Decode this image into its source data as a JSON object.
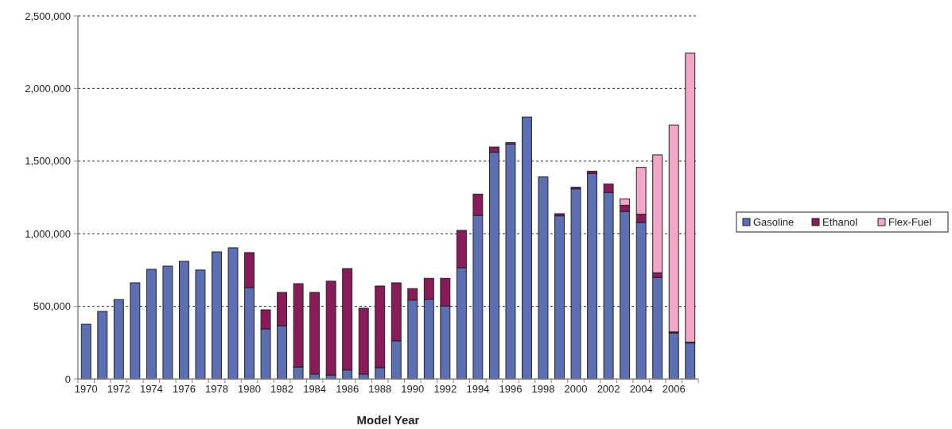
{
  "chart_data": {
    "type": "bar",
    "stacked": true,
    "xlabel": "Model Year",
    "categories": [
      "1970",
      null,
      "1972",
      null,
      "1974",
      null,
      "1976",
      null,
      "1978",
      null,
      "1980",
      null,
      "1982",
      null,
      "1984",
      null,
      "1986",
      null,
      "1988",
      null,
      "1990",
      null,
      "1992",
      null,
      "1994",
      null,
      "1996",
      null,
      "1998",
      null,
      "2000",
      null,
      "2002",
      null,
      "2004",
      null,
      "2006",
      null
    ],
    "series": [
      {
        "name": "Gasoline",
        "color": "#5b6fb5",
        "values": [
          377000,
          465000,
          547000,
          662000,
          755000,
          777000,
          810000,
          750000,
          875000,
          903000,
          629000,
          345000,
          366000,
          82000,
          34000,
          27000,
          62000,
          34000,
          78000,
          263000,
          543000,
          549000,
          503000,
          766000,
          1127000,
          1561000,
          1617000,
          1804000,
          1391000,
          1123000,
          1309000,
          1415000,
          1284000,
          1154000,
          1078000,
          699000,
          316000,
          248000
        ]
      },
      {
        "name": "Ethanol",
        "color": "#8b1a5a",
        "values": [
          0,
          0,
          0,
          0,
          0,
          0,
          0,
          0,
          0,
          0,
          241000,
          131000,
          230000,
          574000,
          562000,
          646000,
          698000,
          453000,
          562000,
          399000,
          79000,
          144000,
          190000,
          257000,
          146000,
          36000,
          11000,
          0,
          0,
          15000,
          11000,
          15000,
          58000,
          42000,
          56000,
          32000,
          8000,
          5000
        ]
      },
      {
        "name": "Flex-Fuel",
        "color": "#f4a6c8",
        "values": [
          0,
          0,
          0,
          0,
          0,
          0,
          0,
          0,
          0,
          0,
          0,
          0,
          0,
          0,
          0,
          0,
          0,
          0,
          0,
          0,
          0,
          0,
          0,
          0,
          0,
          0,
          0,
          0,
          0,
          0,
          0,
          0,
          0,
          44000,
          323000,
          812000,
          1425000,
          1990000
        ]
      }
    ],
    "ylim": [
      0,
      2500000
    ],
    "yticks": [
      {
        "value": 0,
        "label": "0"
      },
      {
        "value": 500000,
        "label": "500,000"
      },
      {
        "value": 1000000,
        "label": "1,000,000"
      },
      {
        "value": 1500000,
        "label": "1,500,000"
      },
      {
        "value": 2000000,
        "label": "2,000,000"
      },
      {
        "value": 2500000,
        "label": "2,500,000"
      }
    ],
    "grid": "y",
    "legend": "right"
  }
}
